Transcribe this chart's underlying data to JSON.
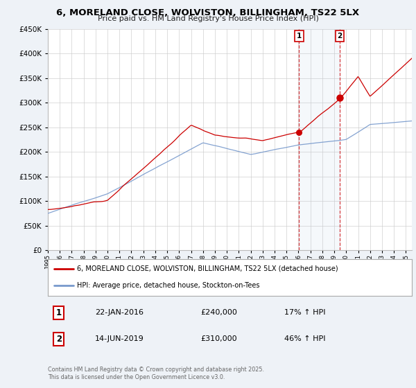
{
  "title": "6, MORELAND CLOSE, WOLVISTON, BILLINGHAM, TS22 5LX",
  "subtitle": "Price paid vs. HM Land Registry's House Price Index (HPI)",
  "legend_line1": "6, MORELAND CLOSE, WOLVISTON, BILLINGHAM, TS22 5LX (detached house)",
  "legend_line2": "HPI: Average price, detached house, Stockton-on-Tees",
  "annotation1_date": "22-JAN-2016",
  "annotation1_price": "£240,000",
  "annotation1_hpi": "17% ↑ HPI",
  "annotation2_date": "14-JUN-2019",
  "annotation2_price": "£310,000",
  "annotation2_hpi": "46% ↑ HPI",
  "footer": "Contains HM Land Registry data © Crown copyright and database right 2025.\nThis data is licensed under the Open Government Licence v3.0.",
  "hpi_red_color": "#cc0000",
  "hpi_blue_color": "#7799cc",
  "sale1_year": 2016.055,
  "sale2_year": 2019.45,
  "sale1_price": 240000,
  "sale2_price": 310000,
  "ylim_min": 0,
  "ylim_max": 450000,
  "xlim_min": 1995,
  "xlim_max": 2025.5,
  "background_color": "#eef2f7",
  "plot_bg_color": "#ffffff",
  "grid_color": "#cccccc"
}
